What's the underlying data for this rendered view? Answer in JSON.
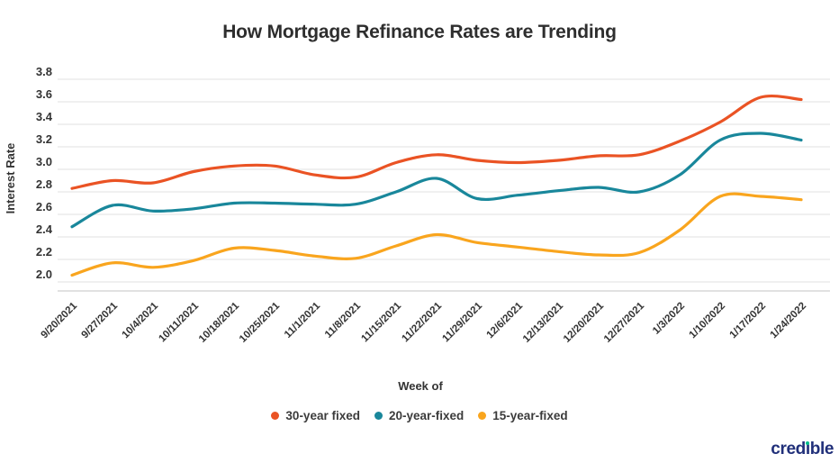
{
  "chart_data": {
    "type": "line",
    "title": "How Mortgage Refinance Rates are Trending",
    "xlabel": "Week of",
    "ylabel": "Interest Rate",
    "categories": [
      "9/20/2021",
      "9/27/2021",
      "10/4/2021",
      "10/11/2021",
      "10/18/2021",
      "10/25/2021",
      "11/1/2021",
      "11/8/2021",
      "11/15/2021",
      "11/22/2021",
      "11/29/2021",
      "12/6/2021",
      "12/13/2021",
      "12/20/2021",
      "12/27/2021",
      "1/3/2022",
      "1/10/2022",
      "1/17/2022",
      "1/24/2022"
    ],
    "yticks": [
      "3.8",
      "3.6",
      "3.4",
      "3.2",
      "3.0",
      "2.8",
      "2.6",
      "2.4",
      "2.2",
      "2.0"
    ],
    "ylim": [
      2.0,
      3.8
    ],
    "grid": true,
    "legend_position": "bottom",
    "series": [
      {
        "name": "30-year fixed",
        "color": "#ea5324",
        "values": [
          2.83,
          2.9,
          2.88,
          2.98,
          3.03,
          3.03,
          2.95,
          2.93,
          3.06,
          3.13,
          3.08,
          3.06,
          3.08,
          3.12,
          3.13,
          3.25,
          3.42,
          3.64,
          3.62
        ]
      },
      {
        "name": "20-year-fixed",
        "color": "#19879b",
        "values": [
          2.49,
          2.68,
          2.63,
          2.65,
          2.7,
          2.7,
          2.69,
          2.69,
          2.8,
          2.92,
          2.74,
          2.77,
          2.81,
          2.84,
          2.8,
          2.95,
          3.26,
          3.32,
          3.26
        ]
      },
      {
        "name": "15-year-fixed",
        "color": "#f9a51e",
        "values": [
          2.06,
          2.17,
          2.13,
          2.19,
          2.3,
          2.28,
          2.23,
          2.21,
          2.32,
          2.42,
          2.35,
          2.31,
          2.27,
          2.24,
          2.26,
          2.46,
          2.76,
          2.76,
          2.73
        ]
      }
    ]
  },
  "branding": {
    "logo_text": "credible",
    "logo_color": "#21307a",
    "logo_dot_color": "#00c08b"
  },
  "colors": {
    "grid": "#e7e7e7",
    "axis_line": "#cfcfcf",
    "text": "#333333",
    "title": "#2e2e2e",
    "background": "#ffffff"
  }
}
